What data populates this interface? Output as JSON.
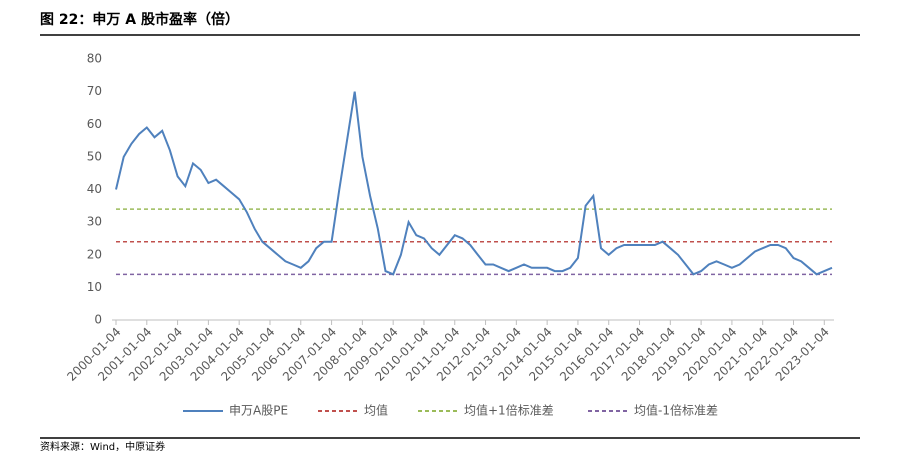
{
  "title": "图 22：申万 A 股市盈率（倍）",
  "source": "资料来源：Wind，中原证券",
  "chart_data": {
    "type": "line",
    "categories": [
      "2000-01-04",
      null,
      null,
      null,
      "2001-01-04",
      null,
      null,
      null,
      "2002-01-04",
      null,
      null,
      null,
      "2003-01-04",
      null,
      null,
      null,
      "2004-01-04",
      null,
      null,
      null,
      "2005-01-04",
      null,
      null,
      null,
      "2006-01-04",
      null,
      null,
      null,
      "2007-01-04",
      null,
      null,
      null,
      "2008-01-04",
      null,
      null,
      null,
      "2009-01-04",
      null,
      null,
      null,
      "2010-01-04",
      null,
      null,
      null,
      "2011-01-04",
      null,
      null,
      null,
      "2012-01-04",
      null,
      null,
      null,
      "2013-01-04",
      null,
      null,
      null,
      "2014-01-04",
      null,
      null,
      null,
      "2015-01-04",
      null,
      null,
      null,
      "2016-01-04",
      null,
      null,
      null,
      "2017-01-04",
      null,
      null,
      null,
      "2018-01-04",
      null,
      null,
      null,
      "2019-01-04",
      null,
      null,
      null,
      "2020-01-04",
      null,
      null,
      null,
      "2021-01-04",
      null,
      null,
      null,
      "2022-01-04",
      null,
      null,
      null,
      "2023-01-04",
      null
    ],
    "series": [
      {
        "name": "申万A股PE",
        "color": "#4f81bd",
        "values": [
          40,
          50,
          54,
          57,
          59,
          56,
          58,
          52,
          44,
          41,
          48,
          46,
          42,
          43,
          41,
          39,
          37,
          33,
          28,
          24,
          22,
          20,
          18,
          17,
          16,
          18,
          22,
          24,
          24,
          40,
          55,
          70,
          50,
          38,
          28,
          15,
          14,
          20,
          30,
          26,
          25,
          22,
          20,
          23,
          26,
          25,
          23,
          20,
          17,
          17,
          16,
          15,
          16,
          17,
          16,
          16,
          16,
          15,
          15,
          16,
          19,
          35,
          38,
          22,
          20,
          22,
          23,
          23,
          23,
          23,
          23,
          24,
          22,
          20,
          17,
          14,
          15,
          17,
          18,
          17,
          16,
          17,
          19,
          21,
          22,
          23,
          23,
          22,
          19,
          18,
          16,
          14,
          15,
          16
        ]
      }
    ],
    "hlines": [
      {
        "name": "均值",
        "color": "#c0504d",
        "value": 24
      },
      {
        "name": "均值+1倍标准差",
        "color": "#9bbb59",
        "value": 34
      },
      {
        "name": "均值-1倍标准差",
        "color": "#8064a2",
        "value": 14
      }
    ],
    "ylim": [
      0,
      80
    ],
    "yticks": [
      0,
      10,
      20,
      30,
      40,
      50,
      60,
      70,
      80
    ],
    "grid": false
  }
}
